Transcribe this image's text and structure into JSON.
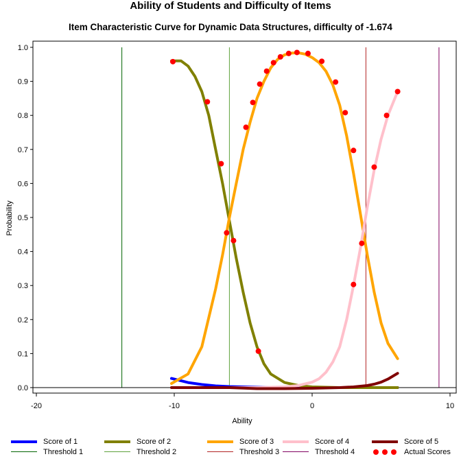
{
  "chart_data": {
    "type": "line",
    "title": "Ability of Students and Difficulty of Items",
    "subtitle": "Item Characteristic Curve for Dynamic Data Structures, difficulty of -1.674",
    "xlabel": "Ability",
    "ylabel": "Probability",
    "xlim": [
      -20,
      10
    ],
    "ylim": [
      0.0,
      1.0
    ],
    "x_ticks": [
      "-20",
      "-10",
      "0",
      "10"
    ],
    "y_ticks": [
      "0.0",
      "0.1",
      "0.2",
      "0.3",
      "0.4",
      "0.5",
      "0.6",
      "0.7",
      "0.8",
      "0.9",
      "1.0"
    ],
    "reference_line_y": 0,
    "grid": false,
    "series": [
      {
        "name": "Score of 1",
        "color": "#0000ff",
        "x": [
          -10.2,
          -9.5,
          -9.0,
          -8.0,
          -7.0,
          -6.0,
          -5.0,
          -4.0,
          -3.0,
          -2.0,
          -1.0,
          0.0,
          1.0,
          2.0,
          3.0,
          4.0,
          5.0,
          6.2
        ],
        "y": [
          0.027,
          0.02,
          0.015,
          0.009,
          0.005,
          0.003,
          0.002,
          0.001,
          0.0,
          0.0,
          0.0,
          0.0,
          0.0,
          0.0,
          0.0,
          0.0,
          0.0,
          0.0
        ]
      },
      {
        "name": "Score of 2",
        "color": "#808000",
        "x": [
          -10.2,
          -9.5,
          -9.0,
          -8.5,
          -8.0,
          -7.5,
          -7.0,
          -6.5,
          -6.0,
          -5.5,
          -5.0,
          -4.5,
          -4.0,
          -3.5,
          -3.0,
          -2.0,
          -1.0,
          0.0,
          1.0,
          2.0,
          3.0,
          4.0,
          5.0,
          6.2
        ],
        "y": [
          0.96,
          0.96,
          0.945,
          0.915,
          0.87,
          0.8,
          0.7,
          0.6,
          0.49,
          0.38,
          0.28,
          0.19,
          0.12,
          0.07,
          0.04,
          0.015,
          0.006,
          0.002,
          0.001,
          0.0,
          0.0,
          0.0,
          0.0,
          0.0
        ]
      },
      {
        "name": "Score of 3",
        "color": "#ffa500",
        "x": [
          -10.2,
          -9.0,
          -8.0,
          -7.0,
          -6.5,
          -6.0,
          -5.5,
          -5.0,
          -4.5,
          -4.0,
          -3.5,
          -3.0,
          -2.5,
          -2.0,
          -1.5,
          -1.0,
          -0.5,
          0.0,
          0.5,
          1.0,
          1.5,
          2.0,
          2.5,
          3.0,
          3.5,
          4.0,
          4.5,
          5.0,
          5.5,
          6.2
        ],
        "y": [
          0.012,
          0.04,
          0.12,
          0.29,
          0.39,
          0.5,
          0.6,
          0.7,
          0.78,
          0.85,
          0.9,
          0.94,
          0.965,
          0.978,
          0.983,
          0.984,
          0.98,
          0.97,
          0.955,
          0.93,
          0.89,
          0.83,
          0.74,
          0.63,
          0.51,
          0.39,
          0.28,
          0.19,
          0.13,
          0.085
        ]
      },
      {
        "name": "Score of 4",
        "color": "#ffc0cb",
        "x": [
          -10.2,
          -6.0,
          -4.0,
          -2.0,
          -1.0,
          0.0,
          0.5,
          1.0,
          1.5,
          2.0,
          2.5,
          3.0,
          3.5,
          4.0,
          4.5,
          5.0,
          5.5,
          6.2
        ],
        "y": [
          0.0,
          0.0,
          0.0,
          0.002,
          0.006,
          0.016,
          0.026,
          0.045,
          0.075,
          0.12,
          0.2,
          0.3,
          0.41,
          0.53,
          0.64,
          0.73,
          0.8,
          0.87
        ]
      },
      {
        "name": "Score of 5",
        "color": "#800000",
        "x": [
          -10.2,
          -6.0,
          -4.0,
          -2.0,
          0.0,
          1.0,
          2.0,
          3.0,
          4.0,
          4.5,
          5.0,
          5.5,
          6.2
        ],
        "y": [
          0.0,
          0.0,
          -0.003,
          -0.003,
          -0.002,
          -0.001,
          0.0,
          0.002,
          0.006,
          0.01,
          0.016,
          0.025,
          0.042
        ]
      }
    ],
    "thresholds": [
      {
        "name": "Threshold 1",
        "x": -13.8,
        "color": "#006400"
      },
      {
        "name": "Threshold 2",
        "x": -6.0,
        "color": "#5da03a"
      },
      {
        "name": "Threshold 3",
        "x": 3.9,
        "color": "#b22222"
      },
      {
        "name": "Threshold 4",
        "x": 9.2,
        "color": "#800060"
      }
    ],
    "actual_scores": {
      "name": "Actual Scores",
      "color": "#ff0000",
      "points": [
        [
          -10.1,
          0.958
        ],
        [
          -7.6,
          0.84
        ],
        [
          -6.6,
          0.658
        ],
        [
          -6.2,
          0.455
        ],
        [
          -5.7,
          0.432
        ],
        [
          -3.9,
          0.107
        ],
        [
          -4.8,
          0.765
        ],
        [
          -4.3,
          0.838
        ],
        [
          -3.8,
          0.892
        ],
        [
          -3.3,
          0.93
        ],
        [
          -2.8,
          0.955
        ],
        [
          -2.3,
          0.972
        ],
        [
          -1.7,
          0.982
        ],
        [
          -1.1,
          0.985
        ],
        [
          -0.3,
          0.982
        ],
        [
          0.7,
          0.959
        ],
        [
          1.7,
          0.898
        ],
        [
          2.4,
          0.808
        ],
        [
          3.0,
          0.697
        ],
        [
          3.6,
          0.424
        ],
        [
          3.0,
          0.303
        ],
        [
          4.5,
          0.648
        ],
        [
          5.4,
          0.8
        ],
        [
          6.2,
          0.87
        ]
      ]
    }
  }
}
